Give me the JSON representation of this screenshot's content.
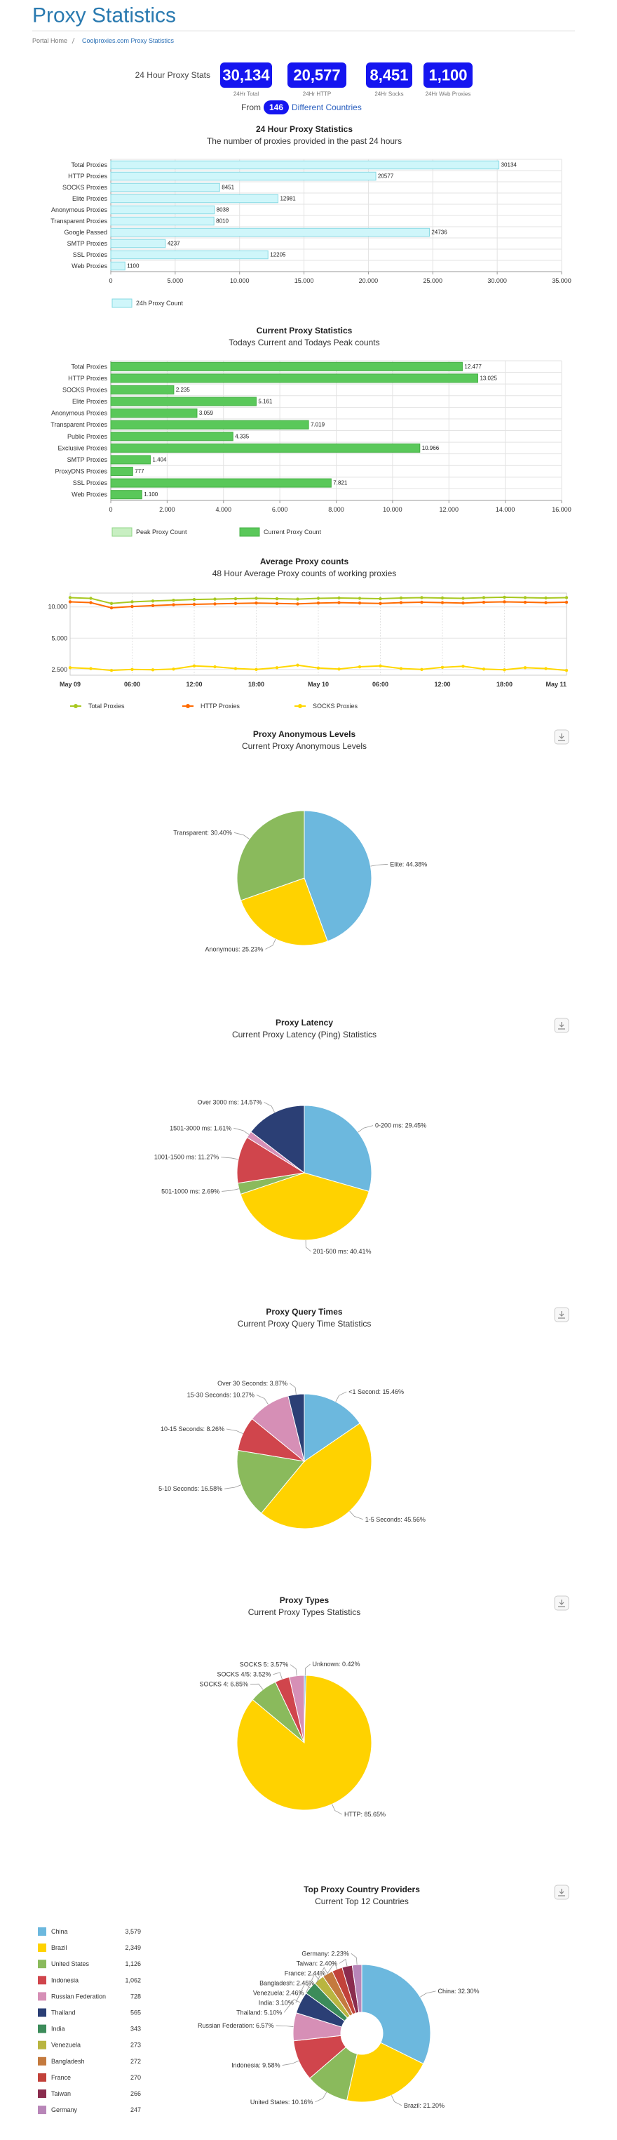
{
  "header": {
    "title": "Proxy Statistics",
    "breadcrumb": [
      "Portal Home",
      "Coolproxies.com Proxy Statistics"
    ]
  },
  "stats": {
    "label": "24 Hour Proxy Stats",
    "items": [
      {
        "value": "30,134",
        "label": "24Hr Total"
      },
      {
        "value": "20,577",
        "label": "24Hr HTTP"
      },
      {
        "value": "8,451",
        "label": "24Hr Socks"
      },
      {
        "value": "1,100",
        "label": "24Hr Web Proxies"
      }
    ],
    "countries": {
      "prefix": "From",
      "value": "146",
      "suffix": "Different Countries"
    }
  },
  "chart_data": [
    {
      "type": "bar",
      "orientation": "horizontal",
      "title": "24 Hour Proxy Statistics",
      "subtitle": "The number of proxies provided in the past 24 hours",
      "categories": [
        "Total Proxies",
        "HTTP Proxies",
        "SOCKS Proxies",
        "Elite Proxies",
        "Anonymous Proxies",
        "Transparent Proxies",
        "Google Passed",
        "SMTP Proxies",
        "SSL Proxies",
        "Web Proxies"
      ],
      "series": [
        {
          "name": "24h Proxy Count",
          "color": "#cff6fa",
          "stroke": "#86d9e3",
          "data_labels": true,
          "values": [
            30134,
            20577,
            8451,
            12981,
            8038,
            8010,
            24736,
            4237,
            12205,
            1100
          ]
        }
      ],
      "xlim": [
        0,
        35000
      ],
      "xticks": [
        0,
        {
          "value": 5000,
          "label": "5.000"
        },
        {
          "value": 10000,
          "label": "10.000"
        },
        {
          "value": 15000,
          "label": "15.000"
        },
        {
          "value": 20000,
          "label": "20.000"
        },
        {
          "value": 25000,
          "label": "25.000"
        },
        {
          "value": 30000,
          "label": "30.000"
        },
        {
          "value": 35000,
          "label": "35.000"
        }
      ],
      "grid": true
    },
    {
      "type": "bar",
      "orientation": "horizontal",
      "title": "Current Proxy Statistics",
      "subtitle": "Todays Current and Todays Peak counts",
      "categories": [
        "Total Proxies",
        "HTTP Proxies",
        "SOCKS Proxies",
        "Elite Proxies",
        "Anonymous Proxies",
        "Transparent Proxies",
        "Public Proxies",
        "Exclusive Proxies",
        "SMTP Proxies",
        "ProxyDNS Proxies",
        "SSL Proxies",
        "Web Proxies"
      ],
      "series": [
        {
          "name": "Peak Proxy Count",
          "color": "#c8efc2",
          "stroke": "#8fd486",
          "values": [
            12477,
            13025,
            2235,
            5161,
            3059,
            7019,
            4335,
            10966,
            1404,
            777,
            7821,
            1100
          ]
        },
        {
          "name": "Current Proxy Count",
          "color": "#5ac85a",
          "stroke": "#46b046",
          "values": [
            12477,
            13025,
            2235,
            5161,
            3059,
            7019,
            4335,
            10966,
            1404,
            777,
            7821,
            1100
          ],
          "value_labels": [
            "12.477",
            "13.025",
            "2.235",
            "5.161",
            "3.059",
            "7.019",
            "4.335",
            "10.966",
            "1.404",
            "777",
            "7.821",
            "1.100"
          ]
        }
      ],
      "xlim": [
        0,
        16000
      ],
      "xticks": [
        0,
        {
          "value": 2000,
          "label": "2.000"
        },
        {
          "value": 4000,
          "label": "4.000"
        },
        {
          "value": 6000,
          "label": "6.000"
        },
        {
          "value": 8000,
          "label": "8.000"
        },
        {
          "value": 10000,
          "label": "10.000"
        },
        {
          "value": 12000,
          "label": "12.000"
        },
        {
          "value": 14000,
          "label": "14.000"
        },
        {
          "value": 16000,
          "label": "16.000"
        }
      ],
      "grid": true
    },
    {
      "type": "line",
      "title": "Average Proxy counts",
      "subtitle": "48 Hour Average Proxy counts of working proxies",
      "log": true,
      "grid": true,
      "categories": [
        "May 09",
        null,
        null,
        "06:00",
        null,
        null,
        "12:00",
        null,
        null,
        "18:00",
        null,
        null,
        "May 10",
        null,
        null,
        "06:00",
        null,
        null,
        "12:00",
        null,
        null,
        "18:00",
        null,
        null,
        "May 11"
      ],
      "series": [
        {
          "name": "Total Proxies",
          "color": "#a8c820",
          "values": [
            12300,
            12100,
            10800,
            11200,
            11400,
            11600,
            11800,
            11900,
            12000,
            12100,
            12000,
            11900,
            12100,
            12200,
            12100,
            12000,
            12200,
            12300,
            12200,
            12100,
            12300,
            12400,
            12300,
            12200,
            12300
          ]
        },
        {
          "name": "HTTP Proxies",
          "color": "#ff6a00",
          "values": [
            11200,
            11000,
            9800,
            10100,
            10300,
            10500,
            10600,
            10700,
            10800,
            10900,
            10800,
            10700,
            10900,
            11000,
            10900,
            10800,
            11000,
            11100,
            11000,
            10900,
            11100,
            11200,
            11100,
            11000,
            11100
          ]
        },
        {
          "name": "SOCKS Proxies",
          "color": "#ffd700",
          "values": [
            2600,
            2550,
            2450,
            2500,
            2480,
            2520,
            2700,
            2650,
            2550,
            2500,
            2600,
            2750,
            2580,
            2520,
            2650,
            2700,
            2550,
            2500,
            2620,
            2680,
            2520,
            2480,
            2600,
            2550,
            2450
          ]
        }
      ],
      "ylim": [
        2200,
        13600
      ],
      "yticks": [
        {
          "value": 2500,
          "label": "2.500"
        },
        {
          "value": 5000,
          "label": "5.000"
        },
        {
          "value": 10000,
          "label": "10.000"
        }
      ]
    },
    {
      "type": "pie",
      "title": "Proxy Anonymous Levels",
      "subtitle": "Current Proxy Anonymous Levels",
      "values": [
        44.38,
        25.23,
        30.4
      ],
      "value_labels": [
        "Elite: 44.38%",
        "Anonymous: 25.23%",
        "Transparent: 30.40%"
      ],
      "colors": [
        "#6cb8de",
        "#ffd200",
        "#8aba5c"
      ]
    },
    {
      "type": "pie",
      "title": "Proxy Latency",
      "subtitle": "Current Proxy Latency (Ping) Statistics",
      "values": [
        29.45,
        40.41,
        2.69,
        11.27,
        1.61,
        14.57
      ],
      "value_labels": [
        "0-200 ms: 29.45%",
        "201-500 ms: 40.41%",
        "501-1000 ms: 2.69%",
        "1001-1500 ms: 11.27%",
        "1501-3000 ms: 1.61%",
        "Over 3000 ms: 14.57%"
      ],
      "colors": [
        "#6cb8de",
        "#ffd200",
        "#8aba5c",
        "#d0454c",
        "#d68fb6",
        "#2b3f75"
      ]
    },
    {
      "type": "pie",
      "title": "Proxy Query Times",
      "subtitle": "Current Proxy Query Time Statistics",
      "values": [
        15.46,
        45.56,
        16.58,
        8.26,
        10.27,
        3.87
      ],
      "value_labels": [
        "<1 Second: 15.46%",
        "1-5 Seconds: 45.56%",
        "5-10 Seconds: 16.58%",
        "10-15 Seconds: 8.26%",
        "15-30 Seconds: 10.27%",
        "Over 30 Seconds: 3.87%"
      ],
      "colors": [
        "#6cb8de",
        "#ffd200",
        "#8aba5c",
        "#d0454c",
        "#d68fb6",
        "#2b3f75"
      ]
    },
    {
      "type": "pie",
      "title": "Proxy Types",
      "subtitle": "Current Proxy Types Statistics",
      "values": [
        0.42,
        85.65,
        6.85,
        3.52,
        3.57
      ],
      "value_labels": [
        "Unknown: 0.42%",
        "HTTP: 85.65%",
        "SOCKS 4: 6.85%",
        "SOCKS 4/5: 3.52%",
        "SOCKS 5: 3.57%"
      ],
      "colors": [
        "#6cb8de",
        "#ffd200",
        "#8aba5c",
        "#d0454c",
        "#d68fb6"
      ]
    },
    {
      "type": "donut",
      "title": "Top Proxy Country Providers",
      "subtitle": "Current Top 12 Countries",
      "categories": [
        "China",
        "Brazil",
        "United States",
        "Indonesia",
        "Russian Federation",
        "Thailand",
        "India",
        "Venezuela",
        "Bangladesh",
        "France",
        "Taiwan",
        "Germany"
      ],
      "values": [
        32.3,
        21.2,
        10.16,
        9.58,
        6.57,
        5.1,
        3.1,
        2.46,
        2.45,
        2.44,
        2.4,
        2.23
      ],
      "value_labels": [
        "China: 32.30%",
        "Brazil: 21.20%",
        "United States: 10.16%",
        "Indonesia: 9.58%",
        "Russian Federation: 6.57%",
        "Thailand: 5.10%",
        "India: 3.10%",
        "Venezuela: 2.46%",
        "Bangladesh: 2.45%",
        "France: 2.44%",
        "Taiwan: 2.40%",
        "Germany: 2.23%"
      ],
      "colors": [
        "#6cb8de",
        "#ffd200",
        "#8aba5c",
        "#d0454c",
        "#d68fb6",
        "#2b3f75",
        "#3c8c5a",
        "#b9b540",
        "#c47a3e",
        "#c2423a",
        "#8a2c4e",
        "#b886b8"
      ],
      "legend_table": {
        "counts": [
          "3,579",
          "2,349",
          "1,126",
          "1,062",
          "728",
          "565",
          "343",
          "273",
          "272",
          "270",
          "266",
          "247"
        ]
      }
    }
  ]
}
